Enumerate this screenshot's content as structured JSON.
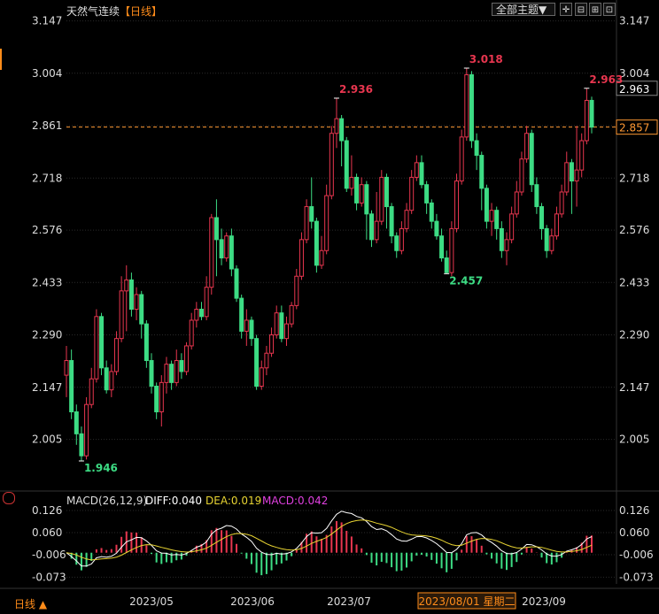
{
  "header": {
    "title": "天然气连续",
    "period": "【日线】",
    "theme_label": "全部主题▼",
    "icons": [
      "crosshair-icon",
      "shrink-icon",
      "grid-icon",
      "expand-icon"
    ]
  },
  "colors": {
    "up": "#e8364f",
    "down": "#3ddc84",
    "bg": "#000000",
    "grid": "#2a2a2a",
    "diff": "#ffffff",
    "dea": "#e8d432",
    "macd_label": "#e040e0",
    "current": "#ff9933"
  },
  "chart_data": {
    "type": "candlestick",
    "yticks": [
      "3.147",
      "3.004",
      "2.861",
      "2.718",
      "2.576",
      "2.433",
      "2.290",
      "2.147",
      "2.005"
    ],
    "ylim": [
      1.9,
      3.147
    ],
    "xlabels": [
      "2023/05",
      "2023/06",
      "2023/07",
      "2023/09"
    ],
    "highlight_date": "2023/08/01 星期二",
    "current_price": "2.857",
    "last_price": "2.963",
    "annotations": [
      {
        "text": "1.946",
        "type": "low"
      },
      {
        "text": "2.936",
        "type": "high"
      },
      {
        "text": "3.018",
        "type": "high"
      },
      {
        "text": "2.457",
        "type": "low"
      },
      {
        "text": "2.963",
        "type": "high"
      }
    ],
    "candles": [
      [
        2.18,
        2.22,
        2.12,
        2.26
      ],
      [
        2.22,
        2.08,
        2.06,
        2.25
      ],
      [
        2.08,
        2.02,
        1.99,
        2.1
      ],
      [
        2.02,
        1.96,
        1.946,
        2.04
      ],
      [
        1.96,
        2.1,
        1.95,
        2.12
      ],
      [
        2.1,
        2.17,
        2.09,
        2.2
      ],
      [
        2.17,
        2.34,
        2.16,
        2.36
      ],
      [
        2.34,
        2.2,
        2.18,
        2.35
      ],
      [
        2.2,
        2.14,
        2.13,
        2.22
      ],
      [
        2.14,
        2.19,
        2.12,
        2.21
      ],
      [
        2.19,
        2.28,
        2.18,
        2.3
      ],
      [
        2.28,
        2.41,
        2.27,
        2.45
      ],
      [
        2.41,
        2.44,
        2.3,
        2.48
      ],
      [
        2.44,
        2.36,
        2.34,
        2.46
      ],
      [
        2.36,
        2.4,
        2.33,
        2.42
      ],
      [
        2.4,
        2.32,
        2.28,
        2.41
      ],
      [
        2.32,
        2.22,
        2.2,
        2.33
      ],
      [
        2.22,
        2.15,
        2.13,
        2.24
      ],
      [
        2.15,
        2.08,
        2.06,
        2.16
      ],
      [
        2.08,
        2.16,
        2.04,
        2.18
      ],
      [
        2.16,
        2.21,
        2.13,
        2.23
      ],
      [
        2.21,
        2.16,
        2.14,
        2.22
      ],
      [
        2.16,
        2.22,
        2.15,
        2.25
      ],
      [
        2.22,
        2.19,
        2.17,
        2.24
      ],
      [
        2.19,
        2.26,
        2.18,
        2.27
      ],
      [
        2.26,
        2.33,
        2.25,
        2.35
      ],
      [
        2.33,
        2.36,
        2.31,
        2.38
      ],
      [
        2.36,
        2.34,
        2.33,
        2.38
      ],
      [
        2.34,
        2.42,
        2.33,
        2.45
      ],
      [
        2.42,
        2.61,
        2.4,
        2.62
      ],
      [
        2.61,
        2.55,
        2.45,
        2.66
      ],
      [
        2.55,
        2.5,
        2.48,
        2.58
      ],
      [
        2.5,
        2.56,
        2.49,
        2.57
      ],
      [
        2.56,
        2.47,
        2.45,
        2.58
      ],
      [
        2.47,
        2.39,
        2.38,
        2.48
      ],
      [
        2.39,
        2.3,
        2.28,
        2.4
      ],
      [
        2.3,
        2.33,
        2.26,
        2.36
      ],
      [
        2.33,
        2.28,
        2.26,
        2.34
      ],
      [
        2.28,
        2.15,
        2.14,
        2.29
      ],
      [
        2.15,
        2.2,
        2.14,
        2.22
      ],
      [
        2.2,
        2.24,
        2.18,
        2.26
      ],
      [
        2.24,
        2.29,
        2.23,
        2.31
      ],
      [
        2.29,
        2.35,
        2.28,
        2.37
      ],
      [
        2.35,
        2.28,
        2.27,
        2.37
      ],
      [
        2.28,
        2.32,
        2.26,
        2.34
      ],
      [
        2.32,
        2.37,
        2.31,
        2.38
      ],
      [
        2.37,
        2.45,
        2.36,
        2.47
      ],
      [
        2.45,
        2.55,
        2.44,
        2.57
      ],
      [
        2.55,
        2.64,
        2.54,
        2.66
      ],
      [
        2.64,
        2.6,
        2.58,
        2.72
      ],
      [
        2.6,
        2.48,
        2.46,
        2.61
      ],
      [
        2.48,
        2.52,
        2.47,
        2.56
      ],
      [
        2.52,
        2.67,
        2.51,
        2.7
      ],
      [
        2.67,
        2.84,
        2.66,
        2.86
      ],
      [
        2.84,
        2.88,
        2.8,
        2.936
      ],
      [
        2.88,
        2.82,
        2.75,
        2.89
      ],
      [
        2.82,
        2.69,
        2.68,
        2.83
      ],
      [
        2.69,
        2.72,
        2.67,
        2.78
      ],
      [
        2.72,
        2.65,
        2.63,
        2.73
      ],
      [
        2.65,
        2.7,
        2.64,
        2.72
      ],
      [
        2.7,
        2.62,
        2.55,
        2.71
      ],
      [
        2.62,
        2.55,
        2.53,
        2.63
      ],
      [
        2.55,
        2.6,
        2.54,
        2.68
      ],
      [
        2.6,
        2.72,
        2.59,
        2.74
      ],
      [
        2.72,
        2.64,
        2.58,
        2.73
      ],
      [
        2.64,
        2.56,
        2.54,
        2.65
      ],
      [
        2.56,
        2.52,
        2.5,
        2.57
      ],
      [
        2.52,
        2.58,
        2.51,
        2.6
      ],
      [
        2.58,
        2.63,
        2.57,
        2.65
      ],
      [
        2.63,
        2.72,
        2.62,
        2.74
      ],
      [
        2.72,
        2.76,
        2.71,
        2.78
      ],
      [
        2.76,
        2.7,
        2.69,
        2.78
      ],
      [
        2.7,
        2.65,
        2.62,
        2.71
      ],
      [
        2.65,
        2.6,
        2.58,
        2.66
      ],
      [
        2.6,
        2.56,
        2.55,
        2.62
      ],
      [
        2.56,
        2.5,
        2.49,
        2.58
      ],
      [
        2.5,
        2.46,
        2.457,
        2.52
      ],
      [
        2.46,
        2.58,
        2.45,
        2.6
      ],
      [
        2.58,
        2.71,
        2.57,
        2.73
      ],
      [
        2.71,
        2.83,
        2.7,
        2.85
      ],
      [
        2.83,
        3.0,
        2.82,
        3.018
      ],
      [
        3.0,
        2.82,
        2.8,
        3.01
      ],
      [
        2.82,
        2.78,
        2.74,
        2.84
      ],
      [
        2.78,
        2.69,
        2.63,
        2.79
      ],
      [
        2.69,
        2.6,
        2.58,
        2.7
      ],
      [
        2.6,
        2.63,
        2.56,
        2.65
      ],
      [
        2.63,
        2.58,
        2.55,
        2.64
      ],
      [
        2.58,
        2.52,
        2.5,
        2.6
      ],
      [
        2.52,
        2.55,
        2.48,
        2.57
      ],
      [
        2.55,
        2.62,
        2.54,
        2.64
      ],
      [
        2.62,
        2.68,
        2.61,
        2.71
      ],
      [
        2.68,
        2.77,
        2.67,
        2.79
      ],
      [
        2.77,
        2.84,
        2.76,
        2.86
      ],
      [
        2.84,
        2.7,
        2.68,
        2.85
      ],
      [
        2.7,
        2.64,
        2.62,
        2.72
      ],
      [
        2.64,
        2.58,
        2.55,
        2.65
      ],
      [
        2.58,
        2.52,
        2.5,
        2.59
      ],
      [
        2.52,
        2.56,
        2.51,
        2.58
      ],
      [
        2.56,
        2.62,
        2.55,
        2.64
      ],
      [
        2.62,
        2.68,
        2.61,
        2.7
      ],
      [
        2.68,
        2.76,
        2.67,
        2.79
      ],
      [
        2.76,
        2.71,
        2.62,
        2.77
      ],
      [
        2.71,
        2.74,
        2.64,
        2.86
      ],
      [
        2.74,
        2.82,
        2.72,
        2.84
      ],
      [
        2.82,
        2.93,
        2.81,
        2.963
      ],
      [
        2.93,
        2.857,
        2.84,
        2.94
      ]
    ],
    "macd": {
      "label": "MACD(26,12,9)",
      "diff_label": "DIFF:0.040",
      "dea_label": "DEA:0.019",
      "macd_label": "MACD:0.042",
      "yticks": [
        "0.126",
        "0.060",
        "-0.006",
        "-0.073"
      ],
      "ylim": [
        -0.1,
        0.14
      ]
    }
  },
  "footer": {
    "period_label": "日线",
    "triangle": "▲"
  }
}
